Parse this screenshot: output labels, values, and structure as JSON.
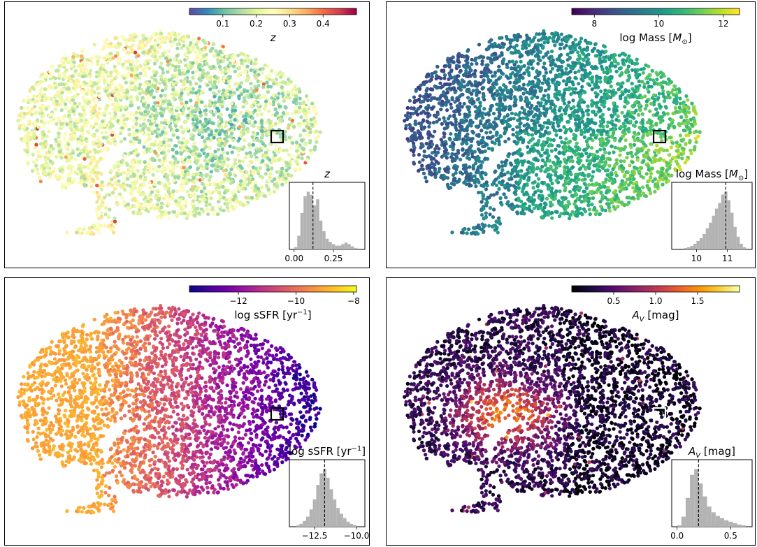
{
  "chart_data": [
    {
      "type": "scatter",
      "colormap": "Spectral_r",
      "colorbar": {
        "label": "z",
        "ticks": [
          "0.1",
          "0.2",
          "0.3",
          "0.4"
        ],
        "tick_values": [
          0.1,
          0.2,
          0.3,
          0.4
        ],
        "range": [
          0.0,
          0.5
        ]
      },
      "marker_color": "#000000",
      "inset": {
        "title": "z",
        "type": "histogram",
        "xticks": [
          "0.00",
          "0.25"
        ],
        "xtick_values": [
          0.0,
          0.25
        ],
        "xlim": [
          -0.03,
          0.45
        ],
        "marker_x": 0.12,
        "bins": [
          0.0,
          0.02,
          0.04,
          0.06,
          0.08,
          0.1,
          0.12,
          0.14,
          0.16,
          0.18,
          0.2,
          0.22,
          0.24,
          0.26,
          0.28,
          0.3,
          0.32,
          0.34,
          0.36,
          0.38,
          0.4
        ],
        "counts": [
          3,
          18,
          48,
          70,
          76,
          72,
          58,
          66,
          38,
          24,
          14,
          10,
          7,
          5,
          5,
          7,
          9,
          7,
          4,
          2
        ]
      }
    },
    {
      "type": "scatter",
      "colormap": "viridis",
      "colorbar": {
        "label": "log Mass [M⊙]",
        "ticks": [
          "8",
          "10",
          "12"
        ],
        "tick_values": [
          8,
          10,
          12
        ],
        "range": [
          7.3,
          12.5
        ]
      },
      "marker_color": "#000000",
      "inset": {
        "title": "log Mass [M⊙]",
        "type": "histogram",
        "xticks": [
          "10",
          "11"
        ],
        "xtick_values": [
          10,
          11
        ],
        "xlim": [
          9.2,
          11.8
        ],
        "marker_x": 10.95,
        "bins": [
          9.6,
          9.7,
          9.8,
          9.9,
          10.0,
          10.1,
          10.2,
          10.3,
          10.4,
          10.5,
          10.6,
          10.7,
          10.8,
          10.9,
          11.0,
          11.1,
          11.2,
          11.3,
          11.4,
          11.5,
          11.6
        ],
        "counts": [
          2,
          3,
          5,
          8,
          12,
          16,
          22,
          30,
          38,
          48,
          58,
          66,
          78,
          82,
          70,
          52,
          32,
          18,
          8,
          3
        ]
      }
    },
    {
      "type": "scatter",
      "colormap": "plasma",
      "colorbar": {
        "label": "log sSFR [yr⁻¹]",
        "ticks": [
          "−12",
          "−10",
          "−8"
        ],
        "tick_values": [
          -12,
          -10,
          -8
        ],
        "range": [
          -13.7,
          -7.9
        ]
      },
      "marker_color": "#000000",
      "inset": {
        "title": "log sSFR [yr⁻¹]",
        "type": "histogram",
        "xticks": [
          "−12.5",
          "−10.0"
        ],
        "xtick_values": [
          -12.5,
          -10.0
        ],
        "xlim": [
          -14.0,
          -9.5
        ],
        "marker_x": -11.9,
        "bins": [
          -13.6,
          -13.4,
          -13.2,
          -13.0,
          -12.8,
          -12.6,
          -12.4,
          -12.2,
          -12.0,
          -11.8,
          -11.6,
          -11.4,
          -11.2,
          -11.0,
          -10.8,
          -10.6,
          -10.4,
          -10.2,
          -10.0
        ],
        "counts": [
          2,
          4,
          8,
          14,
          24,
          38,
          58,
          74,
          80,
          68,
          52,
          38,
          26,
          18,
          12,
          7,
          4,
          2
        ]
      }
    },
    {
      "type": "scatter",
      "colormap": "inferno",
      "colorbar": {
        "label": "A_V [mag]",
        "ticks": [
          "0.5",
          "1.0",
          "1.5"
        ],
        "tick_values": [
          0.5,
          1.0,
          1.5
        ],
        "range": [
          0.0,
          2.0
        ]
      },
      "marker_color": "#ffffff",
      "inset": {
        "title": "A_V [mag]",
        "type": "histogram",
        "xticks": [
          "0.0",
          "0.5"
        ],
        "xtick_values": [
          0.0,
          0.5
        ],
        "xlim": [
          -0.05,
          0.7
        ],
        "marker_x": 0.2,
        "bins": [
          0.0,
          0.04,
          0.08,
          0.12,
          0.16,
          0.2,
          0.24,
          0.28,
          0.32,
          0.36,
          0.4,
          0.44,
          0.48,
          0.52,
          0.56,
          0.6,
          0.64
        ],
        "counts": [
          2,
          14,
          40,
          72,
          80,
          60,
          42,
          28,
          20,
          15,
          12,
          9,
          7,
          5,
          3,
          2
        ]
      }
    }
  ]
}
